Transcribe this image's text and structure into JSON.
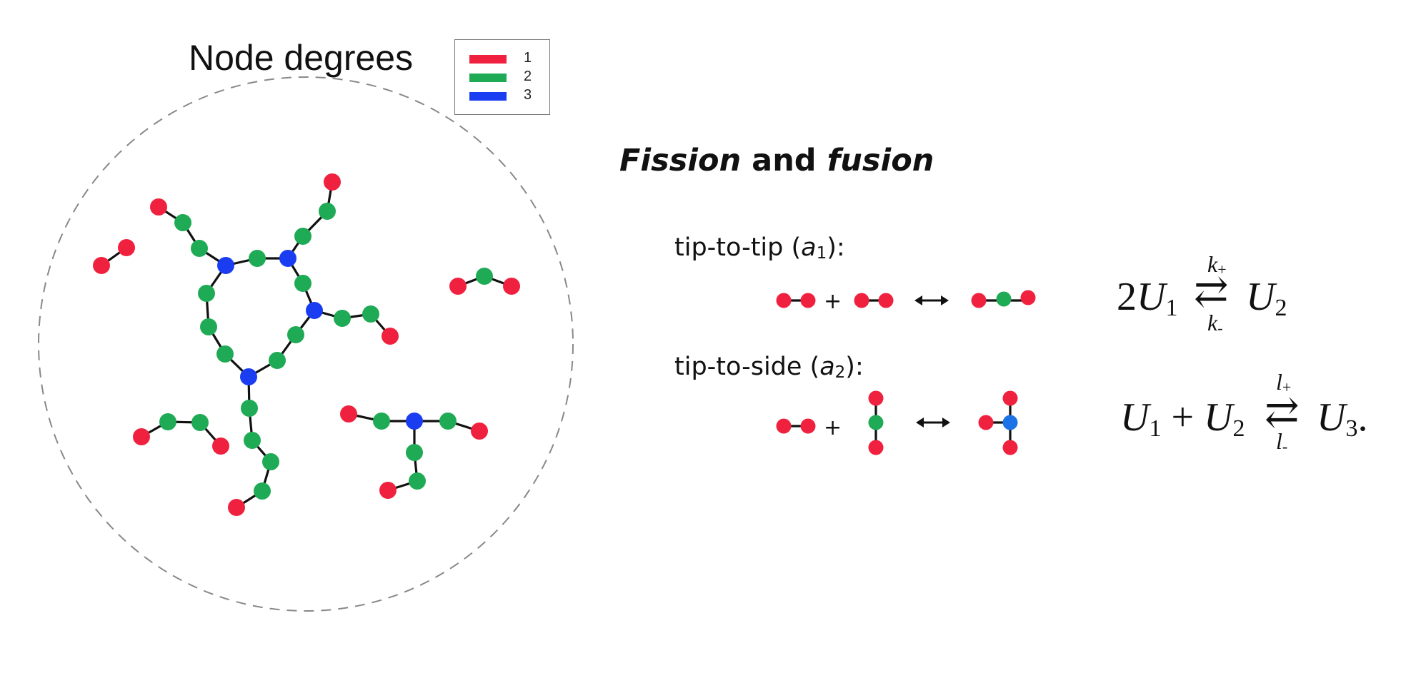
{
  "graph_title": "Node degrees",
  "legend": [
    {
      "label": "1",
      "color": "#f0213f"
    },
    {
      "label": "2",
      "color": "#1faa55"
    },
    {
      "label": "3",
      "color": "#1a3df2"
    }
  ],
  "node_colors": {
    "deg1": "#f0213f",
    "deg2": "#1faa55",
    "deg3": "#1a3df2",
    "deg3_reaction": "#1e72e8"
  },
  "heading": {
    "part1": "Fission",
    "part2": " and ",
    "part3": "fusion"
  },
  "reactions": [
    {
      "prefix": "tip-to-tip (",
      "param": "a",
      "sub": "1",
      "suffix": "):",
      "plus": "+"
    },
    {
      "prefix": "tip-to-side (",
      "param": "a",
      "sub": "2",
      "suffix": "):",
      "plus": "+"
    }
  ],
  "equations": {
    "eq1": {
      "coef": "2",
      "var": "U",
      "sub_left": "1",
      "rate_top": "k",
      "rate_top_sub": "+",
      "rate_bottom": "k",
      "rate_bottom_sub": "-",
      "sub_right": "2",
      "arrows": "⇄"
    },
    "eq2": {
      "var": "U",
      "sub_a": "1",
      "plus": "+",
      "sub_b": "2",
      "rate_top": "l",
      "rate_top_sub": "+",
      "rate_bottom": "l",
      "rate_bottom_sub": "-",
      "sub_right": "3",
      "end": ".",
      "arrows": "⇄"
    }
  }
}
